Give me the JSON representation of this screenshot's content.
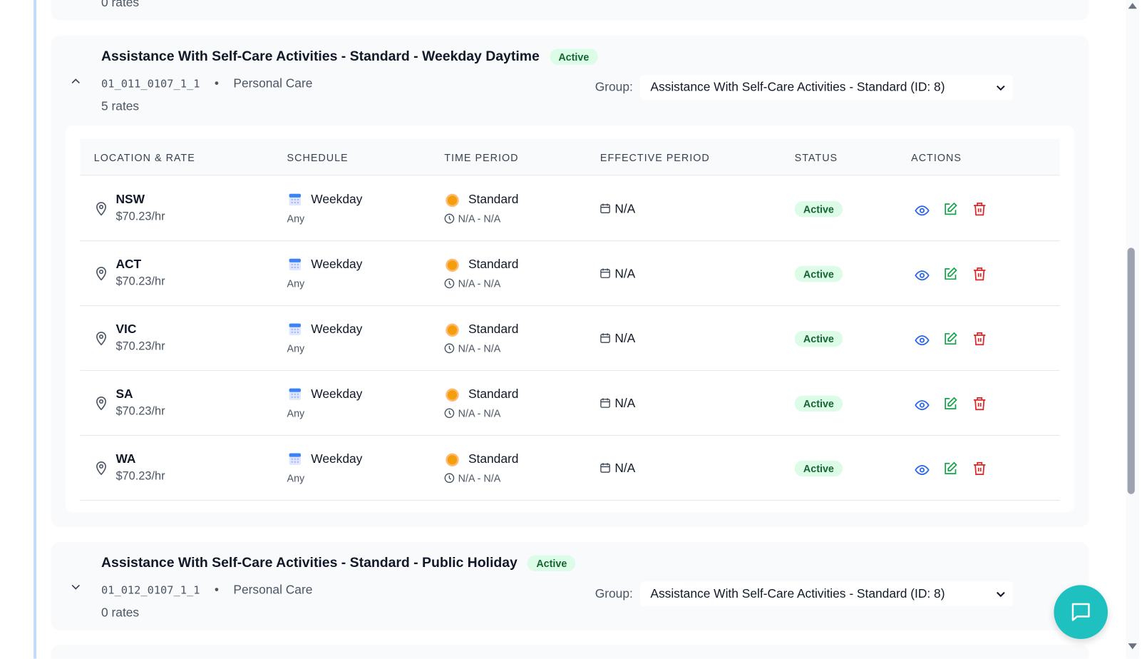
{
  "prev_card": {
    "rates": "0 rates"
  },
  "cards": [
    {
      "title": "Assistance With Self-Care Activities - Standard - Weekday Daytime",
      "status": "Active",
      "code": "01_011_0107_1_1",
      "category": "Personal Care",
      "rates": "5 rates",
      "group_label": "Group:",
      "group_value": "Assistance With Self-Care Activities - Standard (ID: 8)",
      "expanded": true
    },
    {
      "title": "Assistance With Self-Care Activities - Standard - Public Holiday",
      "status": "Active",
      "code": "01_012_0107_1_1",
      "category": "Personal Care",
      "rates": "0 rates",
      "group_label": "Group:",
      "group_value": "Assistance With Self-Care Activities - Standard (ID: 8)",
      "expanded": false
    }
  ],
  "table": {
    "headers": [
      "LOCATION & RATE",
      "SCHEDULE",
      "TIME PERIOD",
      "EFFECTIVE PERIOD",
      "STATUS",
      "ACTIONS"
    ],
    "rows": [
      {
        "location": "NSW",
        "rate": "$70.23/hr",
        "schedule": "Weekday",
        "schedule_sub": "Any",
        "period": "Standard",
        "time": "N/A - N/A",
        "effective": "N/A",
        "status": "Active"
      },
      {
        "location": "ACT",
        "rate": "$70.23/hr",
        "schedule": "Weekday",
        "schedule_sub": "Any",
        "period": "Standard",
        "time": "N/A - N/A",
        "effective": "N/A",
        "status": "Active"
      },
      {
        "location": "VIC",
        "rate": "$70.23/hr",
        "schedule": "Weekday",
        "schedule_sub": "Any",
        "period": "Standard",
        "time": "N/A - N/A",
        "effective": "N/A",
        "status": "Active"
      },
      {
        "location": "SA",
        "rate": "$70.23/hr",
        "schedule": "Weekday",
        "schedule_sub": "Any",
        "period": "Standard",
        "time": "N/A - N/A",
        "effective": "N/A",
        "status": "Active"
      },
      {
        "location": "WA",
        "rate": "$70.23/hr",
        "schedule": "Weekday",
        "schedule_sub": "Any",
        "period": "Standard",
        "time": "N/A - N/A",
        "effective": "N/A",
        "status": "Active"
      }
    ]
  },
  "colors": {
    "accent_blue": "#2563eb",
    "edit_green": "#16a34a",
    "delete_red": "#dc2626",
    "chat": "#1fc0c0",
    "active_bg": "#dcfce7"
  }
}
